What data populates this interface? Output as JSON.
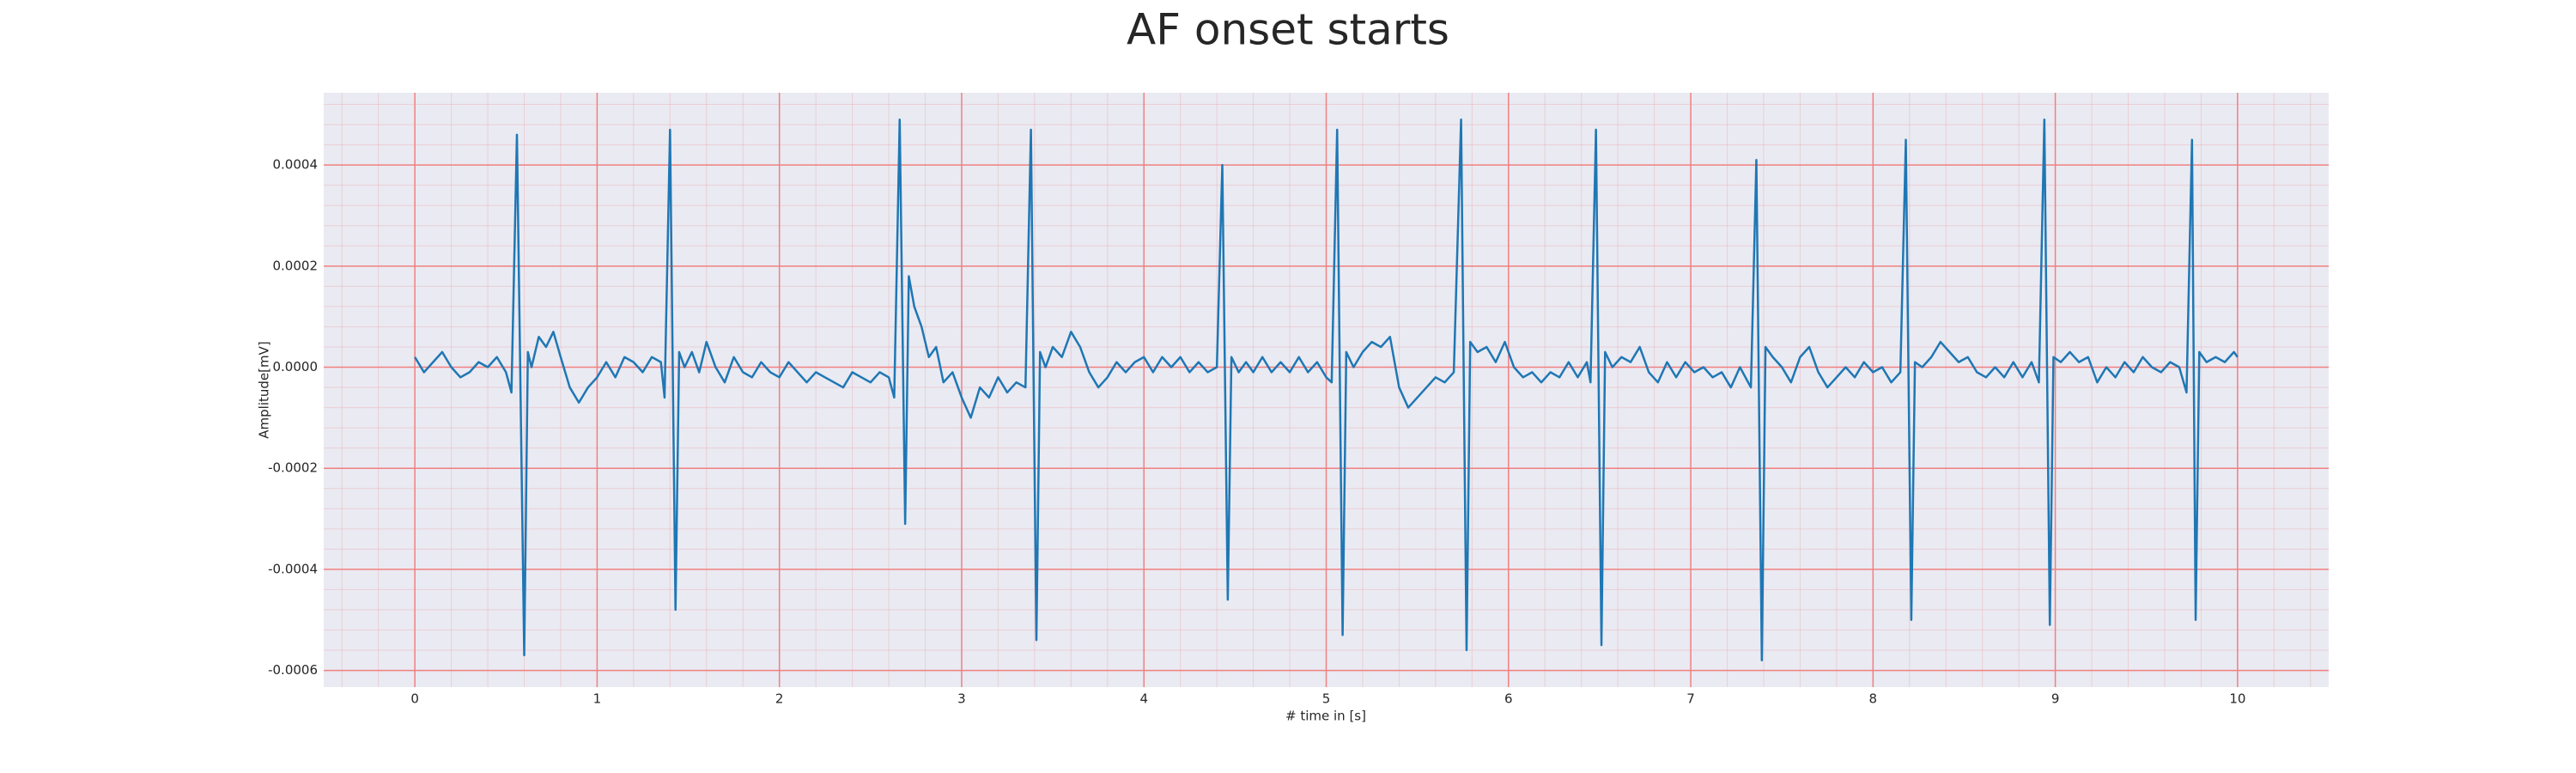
{
  "chart_data": {
    "type": "line",
    "title": "AF onset starts",
    "x_label": "# time in [s]",
    "y_label": "Amplitude[mV]",
    "color": "#1f77b4",
    "background": "#eaeaf2",
    "grid": true,
    "grid_color": "#f08080",
    "minor_grid": 5,
    "xlim": [
      -0.5,
      10.5
    ],
    "xticks": [
      0,
      1,
      2,
      3,
      4,
      5,
      6,
      7,
      8,
      9,
      10
    ],
    "ylim": [
      -0.000633,
      0.000543
    ],
    "yticks": [
      -0.0006,
      -0.0004,
      -0.0002,
      {
        "value": 0,
        "label": "0.0000"
      },
      0.0002,
      0.0004
    ],
    "x": [
      0.0,
      0.05,
      0.1,
      0.15,
      0.2,
      0.25,
      0.3,
      0.35,
      0.4,
      0.45,
      0.5,
      0.53,
      0.56,
      0.6,
      0.62,
      0.64,
      0.68,
      0.72,
      0.76,
      0.8,
      0.85,
      0.9,
      0.95,
      1.0,
      1.05,
      1.1,
      1.15,
      1.2,
      1.25,
      1.3,
      1.35,
      1.37,
      1.4,
      1.43,
      1.45,
      1.48,
      1.52,
      1.56,
      1.6,
      1.65,
      1.7,
      1.75,
      1.8,
      1.85,
      1.9,
      1.95,
      2.0,
      2.05,
      2.1,
      2.15,
      2.2,
      2.25,
      2.3,
      2.35,
      2.4,
      2.45,
      2.5,
      2.55,
      2.6,
      2.63,
      2.66,
      2.69,
      2.71,
      2.74,
      2.78,
      2.82,
      2.86,
      2.9,
      2.95,
      3.0,
      3.05,
      3.1,
      3.15,
      3.2,
      3.25,
      3.3,
      3.35,
      3.38,
      3.41,
      3.43,
      3.46,
      3.5,
      3.55,
      3.6,
      3.65,
      3.7,
      3.75,
      3.8,
      3.85,
      3.9,
      3.95,
      4.0,
      4.05,
      4.1,
      4.15,
      4.2,
      4.25,
      4.3,
      4.35,
      4.4,
      4.43,
      4.46,
      4.48,
      4.52,
      4.56,
      4.6,
      4.65,
      4.7,
      4.75,
      4.8,
      4.85,
      4.9,
      4.95,
      5.0,
      5.03,
      5.06,
      5.09,
      5.11,
      5.15,
      5.2,
      5.25,
      5.3,
      5.35,
      5.4,
      5.45,
      5.5,
      5.55,
      5.6,
      5.65,
      5.7,
      5.74,
      5.77,
      5.79,
      5.83,
      5.88,
      5.93,
      5.98,
      6.03,
      6.08,
      6.13,
      6.18,
      6.23,
      6.28,
      6.33,
      6.38,
      6.43,
      6.45,
      6.48,
      6.51,
      6.53,
      6.57,
      6.62,
      6.67,
      6.72,
      6.77,
      6.82,
      6.87,
      6.92,
      6.97,
      7.02,
      7.07,
      7.12,
      7.17,
      7.22,
      7.27,
      7.33,
      7.36,
      7.39,
      7.41,
      7.45,
      7.5,
      7.55,
      7.6,
      7.65,
      7.7,
      7.75,
      7.8,
      7.85,
      7.9,
      7.95,
      8.0,
      8.05,
      8.1,
      8.15,
      8.18,
      8.21,
      8.23,
      8.27,
      8.32,
      8.37,
      8.42,
      8.47,
      8.52,
      8.57,
      8.62,
      8.67,
      8.72,
      8.77,
      8.82,
      8.87,
      8.91,
      8.94,
      8.97,
      8.99,
      9.03,
      9.08,
      9.13,
      9.18,
      9.23,
      9.28,
      9.33,
      9.38,
      9.43,
      9.48,
      9.53,
      9.58,
      9.63,
      9.68,
      9.72,
      9.75,
      9.77,
      9.79,
      9.83,
      9.88,
      9.93,
      9.98,
      10.0
    ],
    "values": [
      2e-05,
      -1e-05,
      1e-05,
      3e-05,
      0.0,
      -2e-05,
      -1e-05,
      1e-05,
      0.0,
      2e-05,
      -1e-05,
      -5e-05,
      0.00046,
      -0.00057,
      3e-05,
      0.0,
      6e-05,
      4e-05,
      7e-05,
      2e-05,
      -4e-05,
      -7e-05,
      -4e-05,
      -2e-05,
      1e-05,
      -2e-05,
      2e-05,
      1e-05,
      -1e-05,
      2e-05,
      1e-05,
      -6e-05,
      0.00047,
      -0.00048,
      3e-05,
      0.0,
      3e-05,
      -1e-05,
      5e-05,
      0.0,
      -3e-05,
      2e-05,
      -1e-05,
      -2e-05,
      1e-05,
      -1e-05,
      -2e-05,
      1e-05,
      -1e-05,
      -3e-05,
      -1e-05,
      -2e-05,
      -3e-05,
      -4e-05,
      -1e-05,
      -2e-05,
      -3e-05,
      -1e-05,
      -2e-05,
      -6e-05,
      0.00049,
      -0.00031,
      0.00018,
      0.00012,
      8e-05,
      2e-05,
      4e-05,
      -3e-05,
      -1e-05,
      -6e-05,
      -0.0001,
      -4e-05,
      -6e-05,
      -2e-05,
      -5e-05,
      -3e-05,
      -4e-05,
      0.00047,
      -0.00054,
      3e-05,
      0.0,
      4e-05,
      2e-05,
      7e-05,
      4e-05,
      -1e-05,
      -4e-05,
      -2e-05,
      1e-05,
      -1e-05,
      1e-05,
      2e-05,
      -1e-05,
      2e-05,
      0.0,
      2e-05,
      -1e-05,
      1e-05,
      -1e-05,
      0.0,
      0.0004,
      -0.00046,
      2e-05,
      -1e-05,
      1e-05,
      -1e-05,
      2e-05,
      -1e-05,
      1e-05,
      -1e-05,
      2e-05,
      -1e-05,
      1e-05,
      -2e-05,
      -3e-05,
      0.00047,
      -0.00053,
      3e-05,
      0.0,
      3e-05,
      5e-05,
      4e-05,
      6e-05,
      -4e-05,
      -8e-05,
      -6e-05,
      -4e-05,
      -2e-05,
      -3e-05,
      -1e-05,
      0.00049,
      -0.00056,
      5e-05,
      3e-05,
      4e-05,
      1e-05,
      5e-05,
      0.0,
      -2e-05,
      -1e-05,
      -3e-05,
      -1e-05,
      -2e-05,
      1e-05,
      -2e-05,
      1e-05,
      -3e-05,
      0.00047,
      -0.00055,
      3e-05,
      0.0,
      2e-05,
      1e-05,
      4e-05,
      -1e-05,
      -3e-05,
      1e-05,
      -2e-05,
      1e-05,
      -1e-05,
      0.0,
      -2e-05,
      -1e-05,
      -4e-05,
      0.0,
      -4e-05,
      0.00041,
      -0.00058,
      4e-05,
      2e-05,
      0.0,
      -3e-05,
      2e-05,
      4e-05,
      -1e-05,
      -4e-05,
      -2e-05,
      0.0,
      -2e-05,
      1e-05,
      -1e-05,
      0.0,
      -3e-05,
      -1e-05,
      0.00045,
      -0.0005,
      1e-05,
      0.0,
      2e-05,
      5e-05,
      3e-05,
      1e-05,
      2e-05,
      -1e-05,
      -2e-05,
      0.0,
      -2e-05,
      1e-05,
      -2e-05,
      1e-05,
      -3e-05,
      0.00049,
      -0.00051,
      2e-05,
      1e-05,
      3e-05,
      1e-05,
      2e-05,
      -3e-05,
      0.0,
      -2e-05,
      1e-05,
      -1e-05,
      2e-05,
      0.0,
      -1e-05,
      1e-05,
      0.0,
      -5e-05,
      0.00045,
      -0.0005,
      3e-05,
      1e-05,
      2e-05,
      1e-05,
      3e-05,
      2e-05
    ]
  }
}
